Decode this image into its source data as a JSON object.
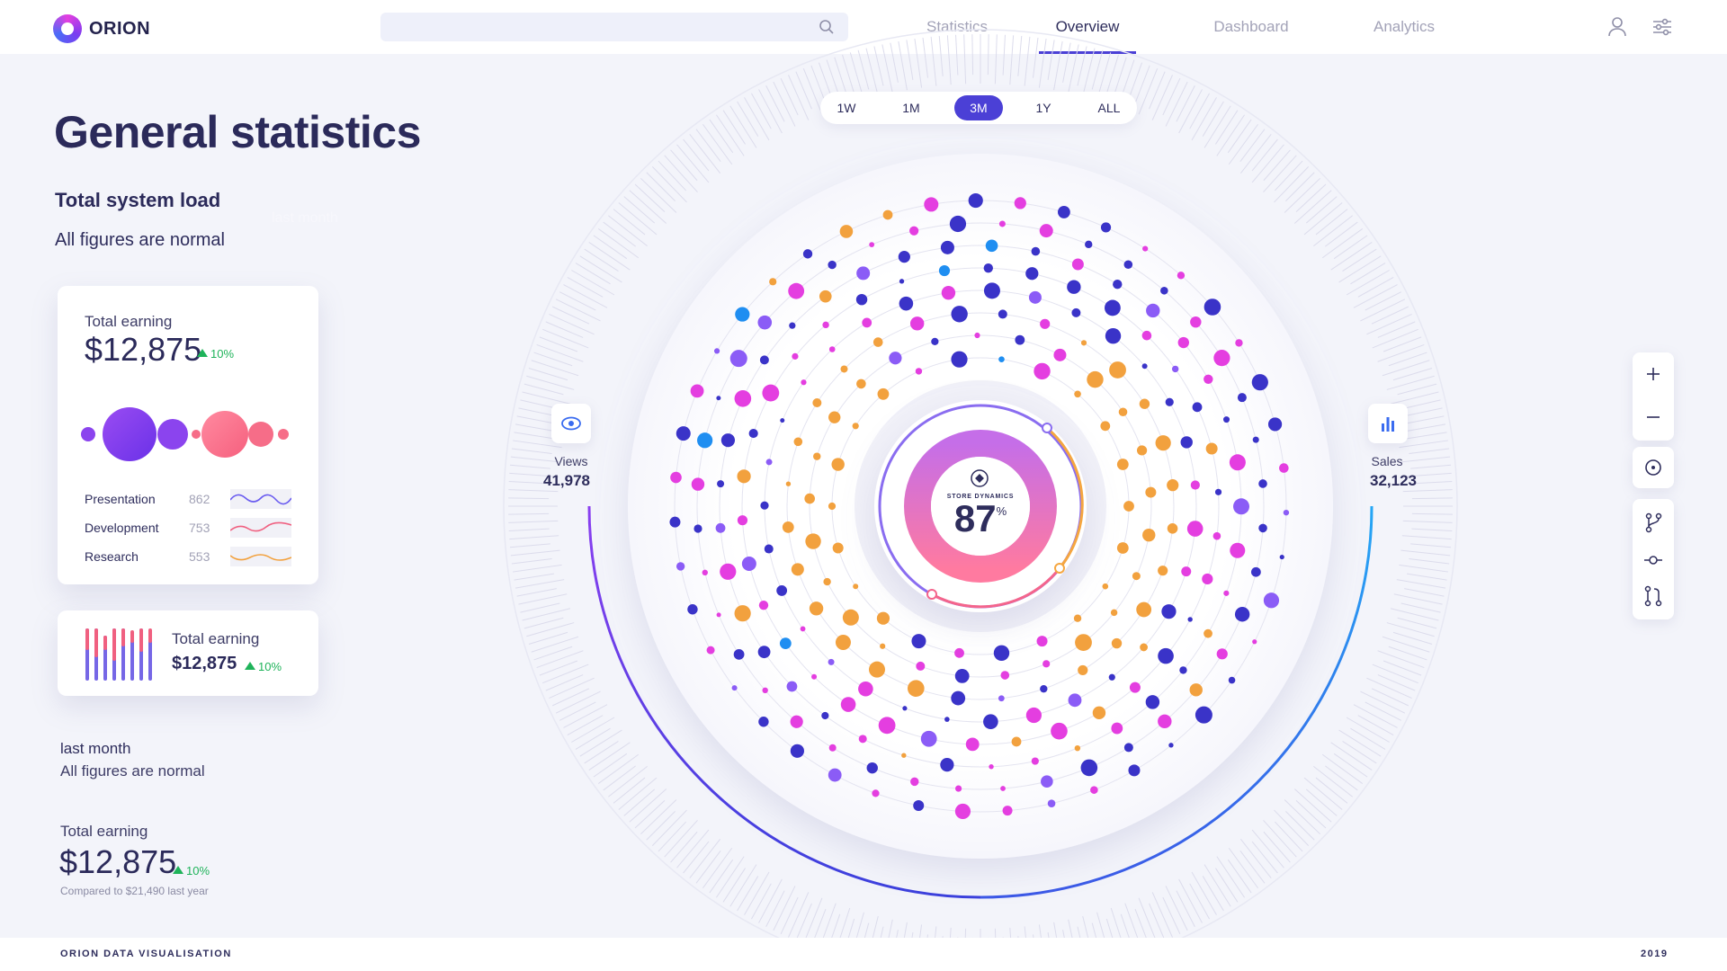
{
  "app": {
    "name": "ORION"
  },
  "search": {
    "placeholder": ""
  },
  "nav": {
    "tabs": [
      {
        "label": "Statistics"
      },
      {
        "label": "Overview"
      },
      {
        "label": "Dashboard"
      },
      {
        "label": "Analytics"
      }
    ],
    "active": "Overview"
  },
  "page": {
    "title": "General statistics",
    "subtitle": "Total system load",
    "ghost": "last month",
    "status": "All figures are normal"
  },
  "card1": {
    "label": "Total earning",
    "value": "$12,875",
    "pct": "10%",
    "rows": [
      {
        "label": "Presentation",
        "value": "862"
      },
      {
        "label": "Development",
        "value": "753"
      },
      {
        "label": "Research",
        "value": "553"
      }
    ]
  },
  "card2": {
    "label": "Total earning",
    "value": "$12,875",
    "pct": "10%"
  },
  "summary": {
    "period": "last month",
    "status": "All figures are normal",
    "label": "Total earning",
    "value": "$12,875",
    "pct": "10%",
    "compare": "Compared to $21,490 last year"
  },
  "range": {
    "items": [
      "1W",
      "1M",
      "3M",
      "1Y",
      "ALL"
    ],
    "active": "3M"
  },
  "views": {
    "label": "Views",
    "value": "41,978"
  },
  "sales": {
    "label": "Sales",
    "value": "32,123"
  },
  "center": {
    "caption": "STORE DYNAMICS",
    "value": "87",
    "unit": "%"
  },
  "footer": {
    "left": "ORION DATA VISUALISATION",
    "right": "2019"
  },
  "colors": {
    "accent": "#4b40d6",
    "positive": "#1fb35a",
    "magenta": "#e43ee0",
    "orange": "#f2a13e",
    "navy": "#3a33c8",
    "violet": "#8b5cf6",
    "blue": "#1f8ef1",
    "pink": "#f87193"
  }
}
